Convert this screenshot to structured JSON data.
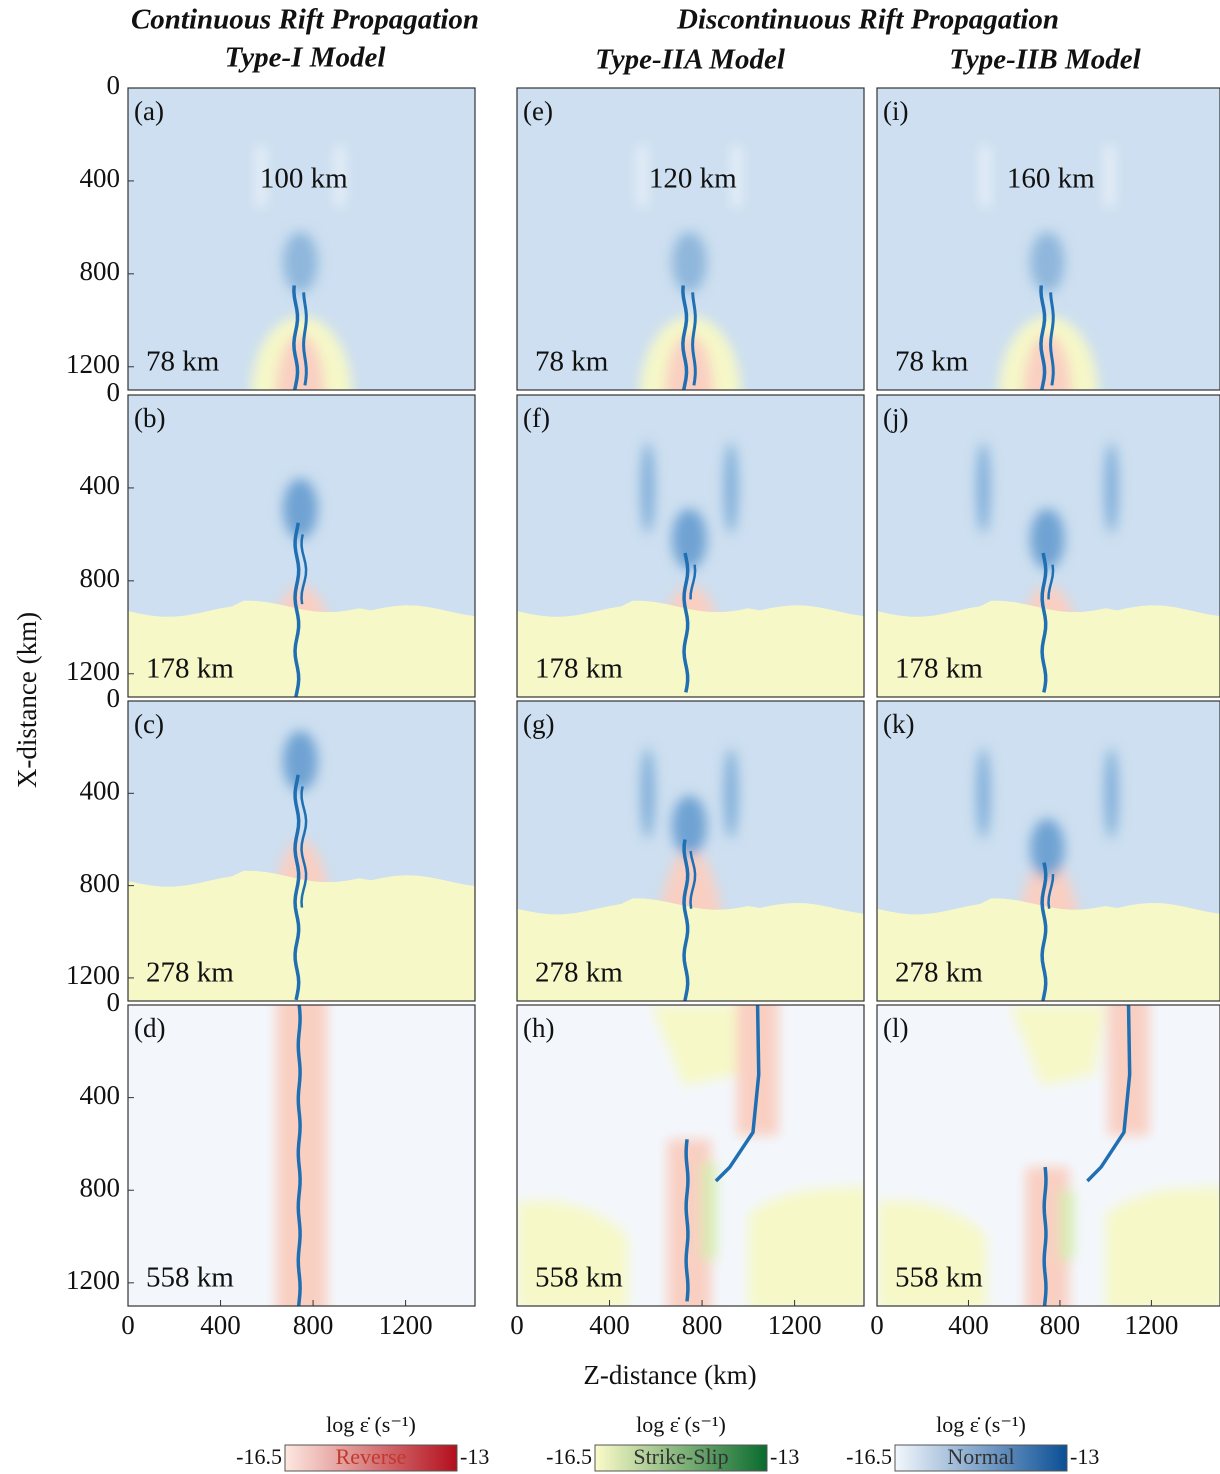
{
  "headers": {
    "left_title": "Continuous Rift Propagation",
    "left_model": "Type-I Model",
    "right_title": "Discontinuous Rift Propagation",
    "middle_model": "Type-IIA Model",
    "right_model": "Type-IIB Model"
  },
  "axes": {
    "xlabel": "Z-distance (km)",
    "ylabel": "X-distance (km)",
    "xlim": [
      0,
      1500
    ],
    "ylim": [
      0,
      1300
    ],
    "xticks": [
      0,
      400,
      800,
      1200
    ],
    "yticks": [
      0,
      400,
      800,
      1200
    ]
  },
  "widths": [
    "100 km",
    "120 km",
    "160 km"
  ],
  "panels": [
    {
      "label": "(a)",
      "time": "78 km"
    },
    {
      "label": "(b)",
      "time": "178 km"
    },
    {
      "label": "(c)",
      "time": "278 km"
    },
    {
      "label": "(d)",
      "time": "558 km"
    },
    {
      "label": "(e)",
      "time": "78 km"
    },
    {
      "label": "(f)",
      "time": "178 km"
    },
    {
      "label": "(g)",
      "time": "278 km"
    },
    {
      "label": "(h)",
      "time": "558 km"
    },
    {
      "label": "(i)",
      "time": "78 km"
    },
    {
      "label": "(j)",
      "time": "178 km"
    },
    {
      "label": "(k)",
      "time": "278 km"
    },
    {
      "label": "(l)",
      "time": "558 km"
    }
  ],
  "colorbars": [
    {
      "title": "log ε̇ (s⁻¹)",
      "name": "Reverse",
      "ticks": [
        -16.5,
        -13
      ],
      "colors": [
        "#fde8e0",
        "#b30f1c"
      ]
    },
    {
      "title": "log ε̇ (s⁻¹)",
      "name": "Strike-Slip",
      "ticks": [
        -16.5,
        -13
      ],
      "colors": [
        "#fbfbc8",
        "#0a6b2e"
      ]
    },
    {
      "title": "log ε̇ (s⁻¹)",
      "name": "Normal",
      "ticks": [
        -16.5,
        -13
      ],
      "colors": [
        "#f2f7fc",
        "#0b4f96"
      ]
    }
  ]
}
